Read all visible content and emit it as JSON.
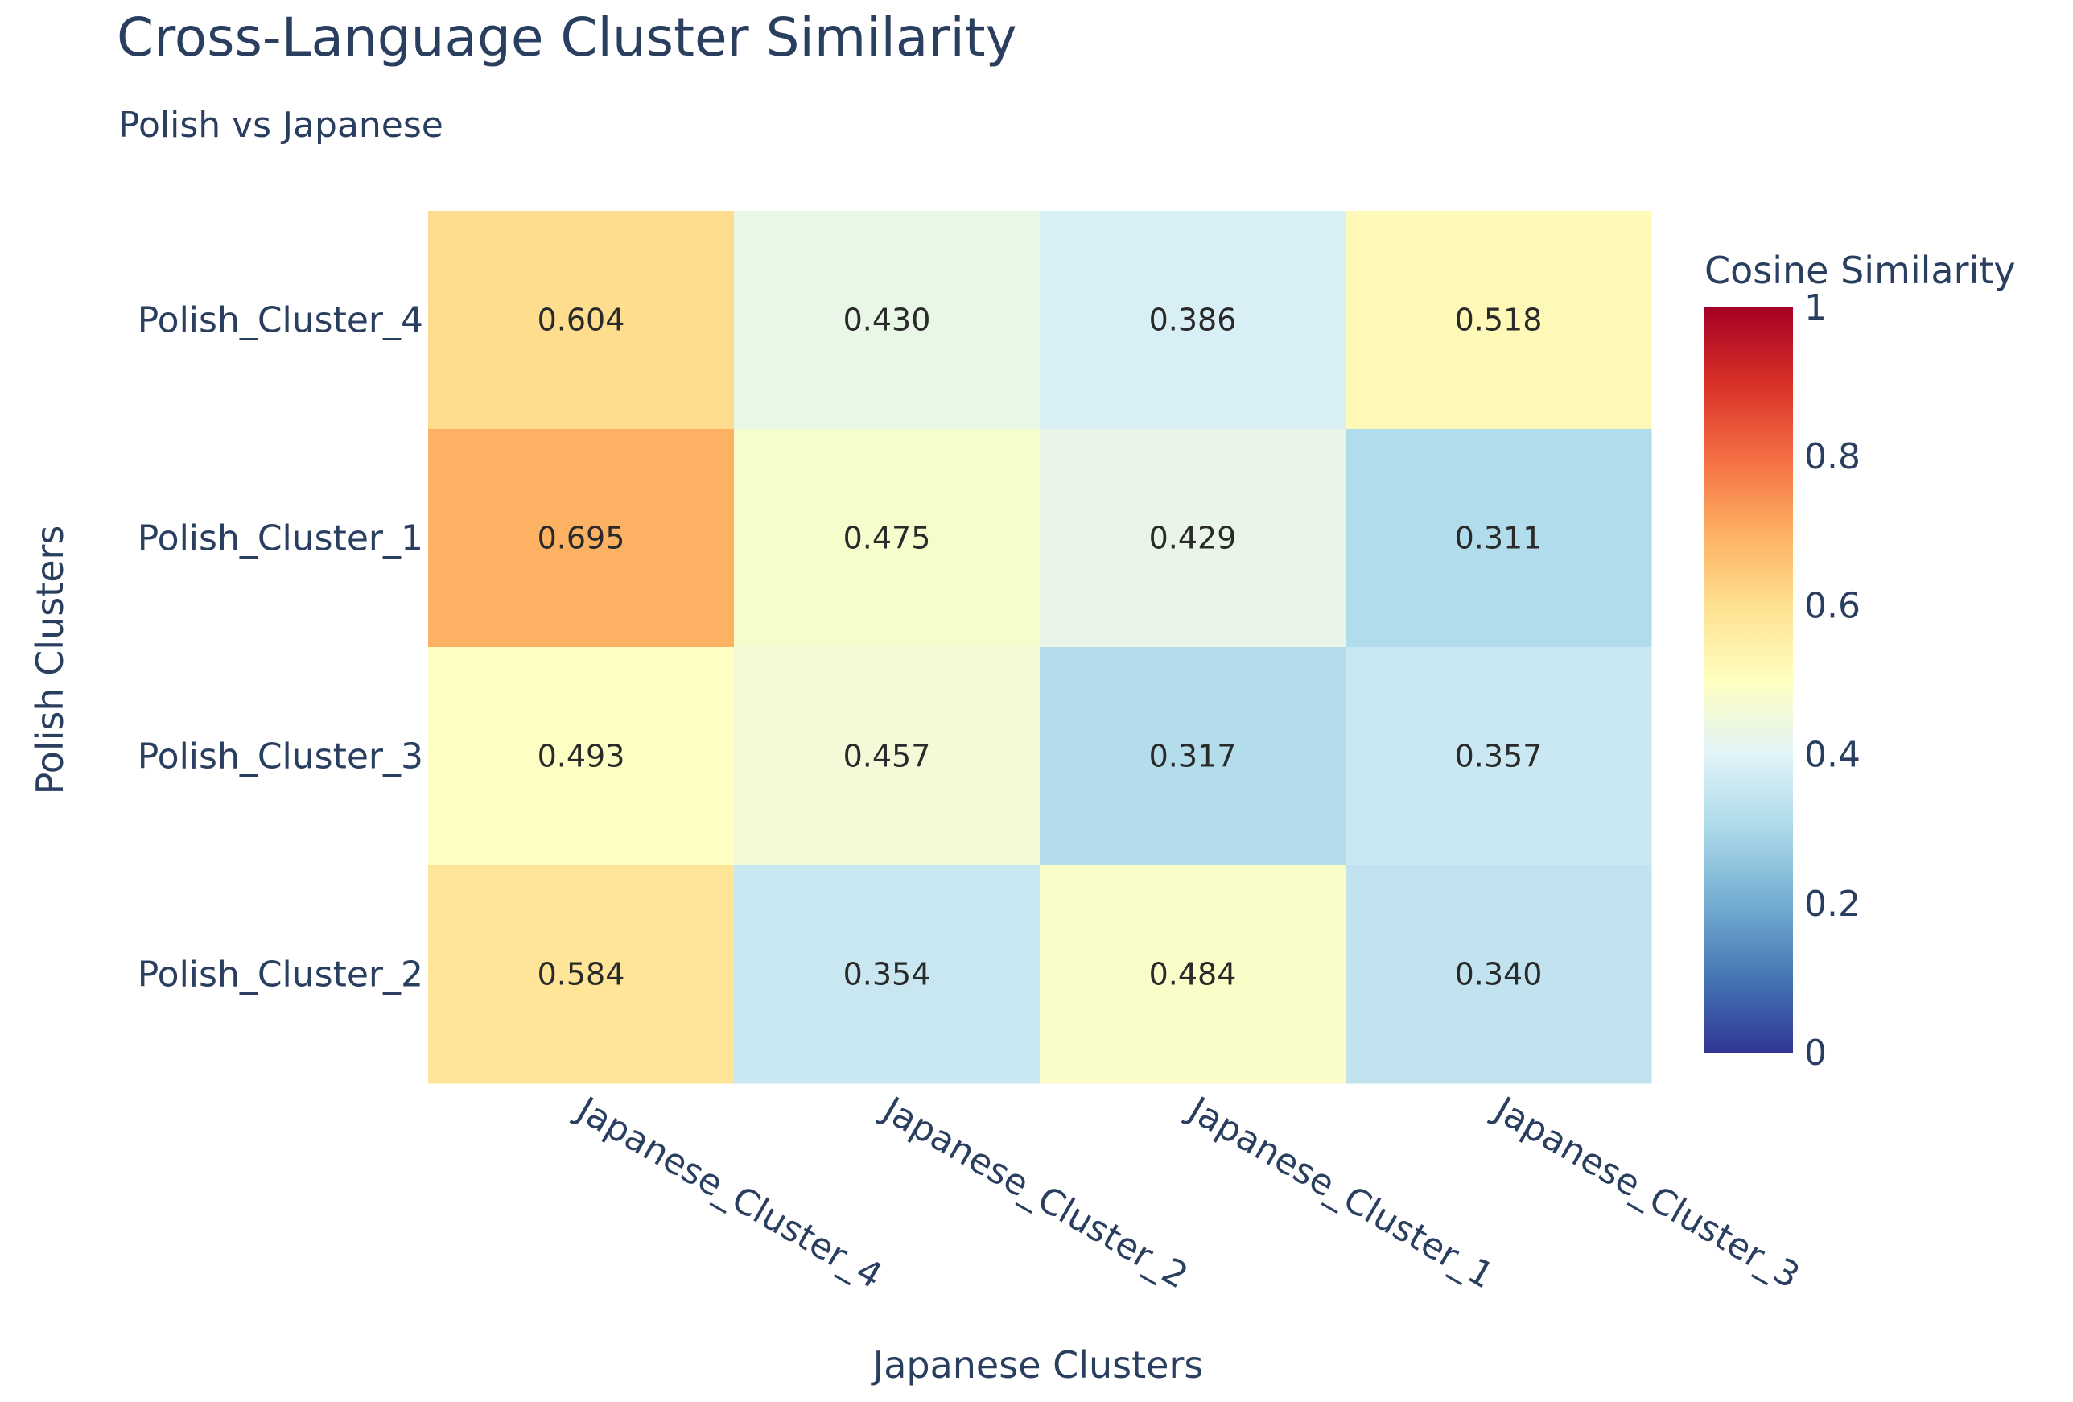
{
  "chart_data": {
    "type": "heatmap",
    "title": "Cross-Language Cluster Similarity",
    "subtitle": "Polish vs Japanese",
    "xlabel": "Japanese Clusters",
    "ylabel": "Polish Clusters",
    "x_categories": [
      "Japanese_Cluster_4",
      "Japanese_Cluster_2",
      "Japanese_Cluster_1",
      "Japanese_Cluster_3"
    ],
    "y_categories": [
      "Polish_Cluster_4",
      "Polish_Cluster_1",
      "Polish_Cluster_3",
      "Polish_Cluster_2"
    ],
    "values": [
      [
        0.604,
        0.43,
        0.386,
        0.518
      ],
      [
        0.695,
        0.475,
        0.429,
        0.311
      ],
      [
        0.493,
        0.457,
        0.317,
        0.357
      ],
      [
        0.584,
        0.354,
        0.484,
        0.34
      ]
    ],
    "value_labels": [
      [
        "0.604",
        "0.430",
        "0.386",
        "0.518"
      ],
      [
        "0.695",
        "0.475",
        "0.429",
        "0.311"
      ],
      [
        "0.493",
        "0.457",
        "0.317",
        "0.357"
      ],
      [
        "0.584",
        "0.354",
        "0.484",
        "0.340"
      ]
    ],
    "colorbar": {
      "title": "Cosine Similarity",
      "range": [
        0,
        1
      ],
      "ticks": [
        0,
        0.2,
        0.4,
        0.6,
        0.8,
        1
      ],
      "tick_labels": [
        "0",
        "0.2",
        "0.4",
        "0.6",
        "0.8",
        "1"
      ],
      "colorscale": "RdYlBu_r",
      "colors": [
        "#313695",
        "#4575b4",
        "#74add1",
        "#abd9e9",
        "#e0f3f8",
        "#ffffbf",
        "#fee090",
        "#fdae61",
        "#f46d43",
        "#d73027",
        "#a50026"
      ]
    }
  }
}
